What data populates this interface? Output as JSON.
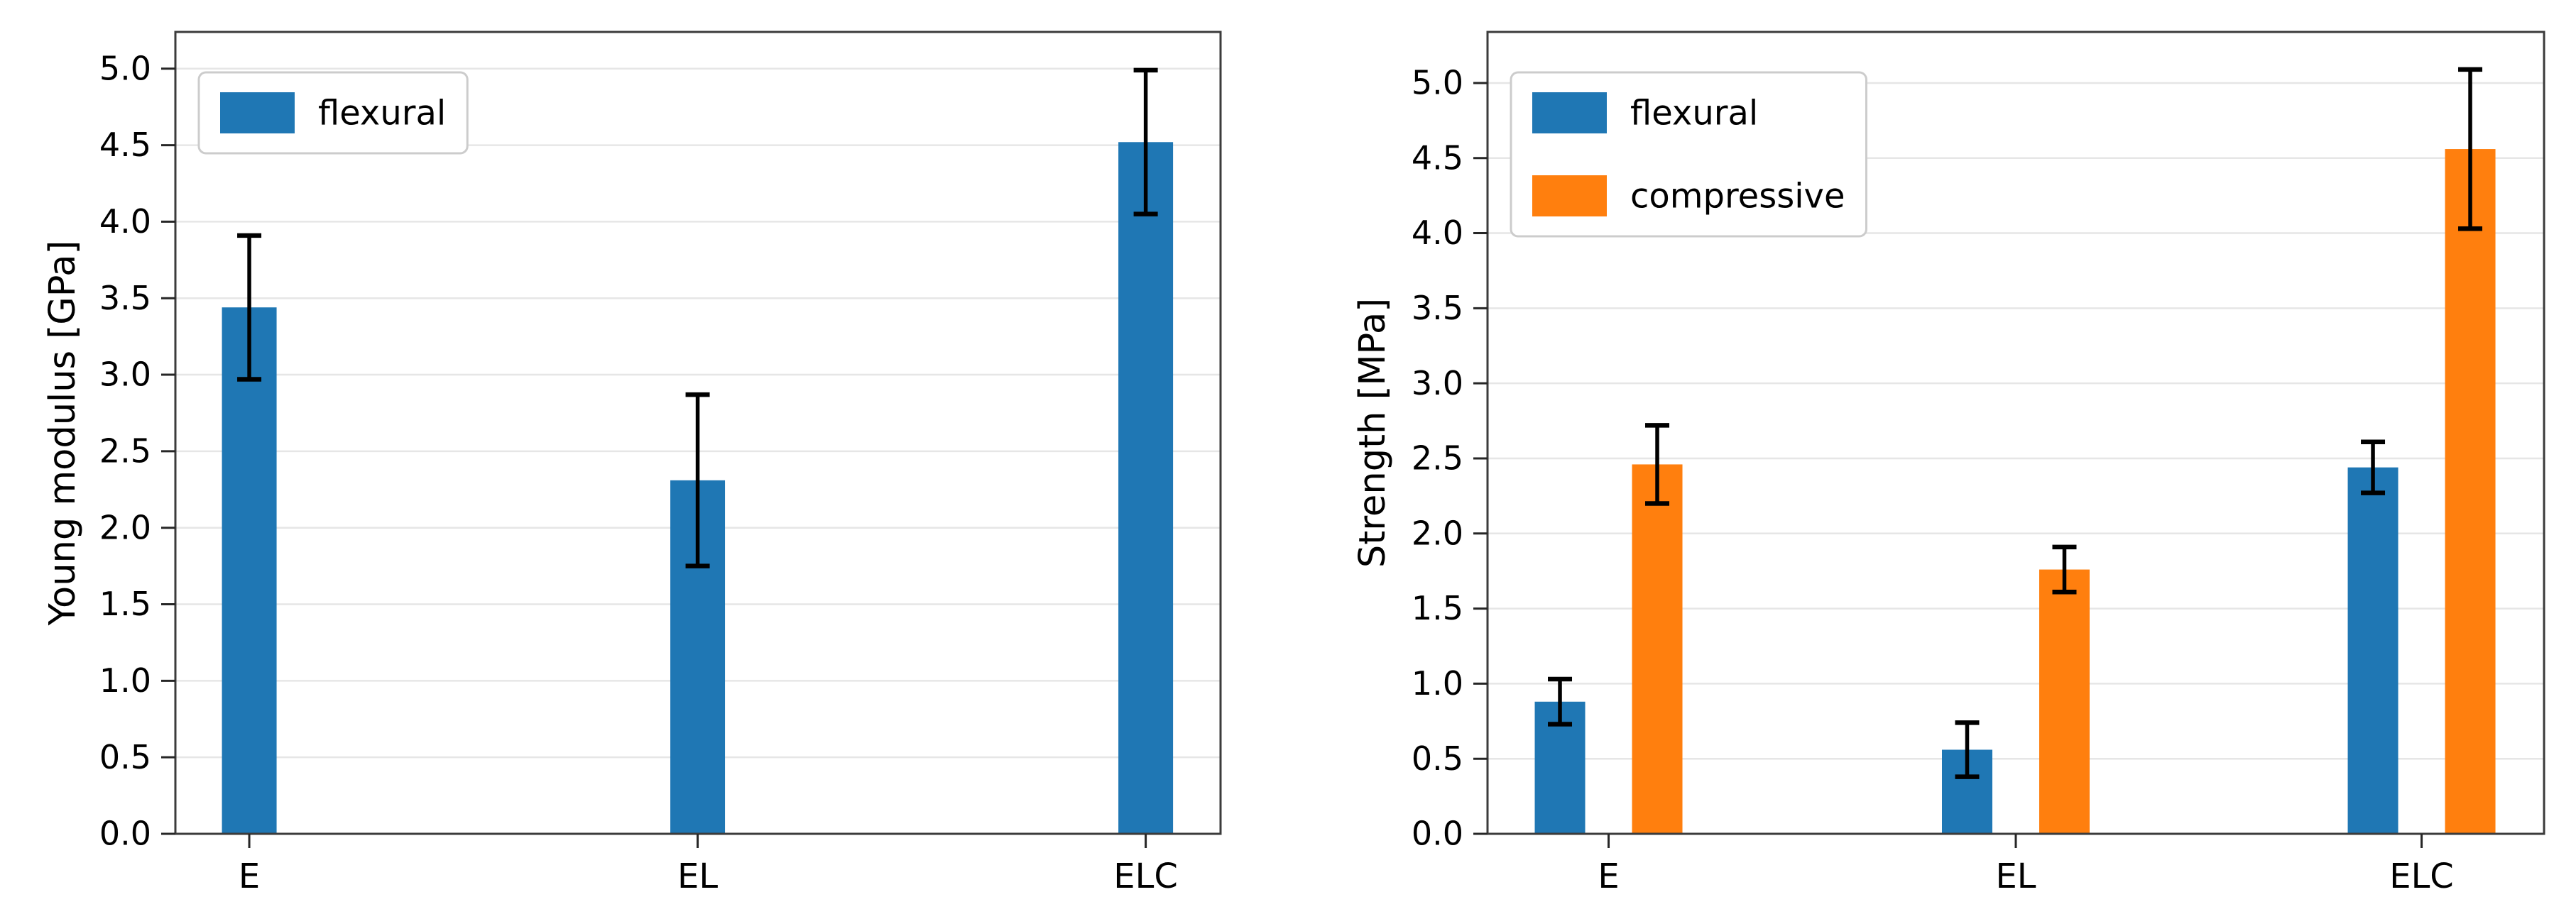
{
  "figure": {
    "background": "#ffffff",
    "grid_color": "#e6e6e6",
    "spine_color": "#3b3b3b",
    "tick_color": "#262626",
    "error_bar_color": "#000000",
    "legend_border_color": "#cccccc",
    "legend_background": "#ffffff"
  },
  "chart_data": [
    {
      "type": "bar",
      "title": "",
      "xlabel": "",
      "ylabel": "Young modulus [GPa]",
      "categories": [
        "E",
        "EL",
        "ELC"
      ],
      "series": [
        {
          "name": "flexural",
          "color": "#1f77b4",
          "values": [
            3.44,
            2.31,
            4.52
          ],
          "errors": [
            0.47,
            0.56,
            0.47
          ]
        }
      ],
      "ylim": [
        0,
        5.24
      ],
      "yticks": [
        0.0,
        0.5,
        1.0,
        1.5,
        2.0,
        2.5,
        3.0,
        3.5,
        4.0,
        4.5,
        5.0
      ],
      "ytick_labels": [
        "0.0",
        "0.5",
        "1.0",
        "1.5",
        "2.0",
        "2.5",
        "3.0",
        "3.5",
        "4.0",
        "4.5",
        "5.0"
      ],
      "grid": true,
      "legend_position": "upper-left"
    },
    {
      "type": "bar",
      "title": "",
      "xlabel": "",
      "ylabel": "Strength [MPa]",
      "categories": [
        "E",
        "EL",
        "ELC"
      ],
      "series": [
        {
          "name": "flexural",
          "color": "#1f77b4",
          "values": [
            0.88,
            0.56,
            2.44
          ],
          "errors": [
            0.15,
            0.18,
            0.17
          ]
        },
        {
          "name": "compressive",
          "color": "#ff7f0e",
          "values": [
            2.46,
            1.76,
            4.56
          ],
          "errors": [
            0.26,
            0.15,
            0.53
          ]
        }
      ],
      "ylim": [
        0,
        5.34
      ],
      "yticks": [
        0.0,
        0.5,
        1.0,
        1.5,
        2.0,
        2.5,
        3.0,
        3.5,
        4.0,
        4.5,
        5.0
      ],
      "ytick_labels": [
        "0.0",
        "0.5",
        "1.0",
        "1.5",
        "2.0",
        "2.5",
        "3.0",
        "3.5",
        "4.0",
        "4.5",
        "5.0"
      ],
      "grid": true,
      "legend_position": "upper-left"
    }
  ]
}
